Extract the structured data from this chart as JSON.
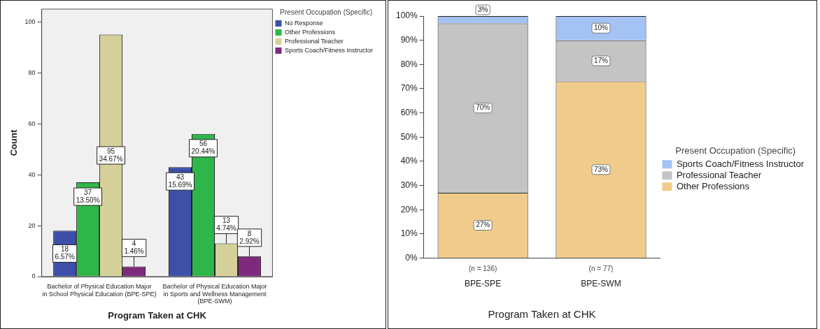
{
  "chart_data": [
    {
      "type": "bar",
      "xlabel": "Program Taken at CHK",
      "ylabel": "Count",
      "legend_title": "Present Occupation (Specific)",
      "legend": "top right",
      "categories": [
        "Bachelor of Physical Education Major in School Physical Education (BPE-SPE)",
        "Bachelor of Physical Education Major in Sports and Wellness Management (BPE-SWM)"
      ],
      "ylim": [
        0,
        105
      ],
      "yticks": [
        0,
        20,
        40,
        60,
        80,
        100
      ],
      "series": [
        {
          "name": "No Response",
          "color": "#3c50a8",
          "values": [
            18,
            43
          ],
          "value_labels": [
            "18\n6.57%",
            "43\n15.69%"
          ]
        },
        {
          "name": "Other Professions",
          "color": "#2fb64a",
          "values": [
            37,
            56
          ],
          "value_labels": [
            "37\n13.50%",
            "56\n20.44%"
          ]
        },
        {
          "name": "Professional Teacher",
          "color": "#d5d09a",
          "values": [
            95,
            13
          ],
          "value_labels": [
            "95\n34.67%",
            "13\n4.74%"
          ]
        },
        {
          "name": "Sports Coach/Fitness Instructor",
          "color": "#7d2a7d",
          "values": [
            4,
            8
          ],
          "value_labels": [
            "4\n1.46%",
            "8\n2.92%"
          ]
        }
      ]
    },
    {
      "type": "bar",
      "stacked": true,
      "xlabel": "Program Taken at CHK",
      "legend_title": "Present Occupation (Specific)",
      "legend": "right",
      "categories": [
        "BPE-SPE",
        "BPE-SWM"
      ],
      "ylim": [
        0,
        100
      ],
      "yticks": [
        {
          "value": 0,
          "label": "0%"
        },
        {
          "value": 10,
          "label": "10%"
        },
        {
          "value": 20,
          "label": "20%"
        },
        {
          "value": 30,
          "label": "30%"
        },
        {
          "value": 40,
          "label": "40%"
        },
        {
          "value": 50,
          "label": "50%"
        },
        {
          "value": 60,
          "label": "60%"
        },
        {
          "value": 70,
          "label": "70%"
        },
        {
          "value": 80,
          "label": "80%"
        },
        {
          "value": 90,
          "label": "90%"
        },
        {
          "value": 100,
          "label": "100%"
        }
      ],
      "annotations": [
        "(n = 136)",
        "(n = 77)"
      ],
      "series": [
        {
          "name": "Other Professions",
          "color": "#f0cc8c",
          "values": [
            27,
            73
          ],
          "value_labels": [
            "27%",
            "73%"
          ]
        },
        {
          "name": "Professional Teacher",
          "color": "#c4c4c4",
          "values": [
            70,
            17
          ],
          "value_labels": [
            "70%",
            "17%"
          ]
        },
        {
          "name": "Sports Coach/Fitness Instructor",
          "color": "#a4c2f4",
          "values": [
            3,
            10
          ],
          "value_labels": [
            "3%",
            "10%"
          ]
        }
      ]
    }
  ]
}
